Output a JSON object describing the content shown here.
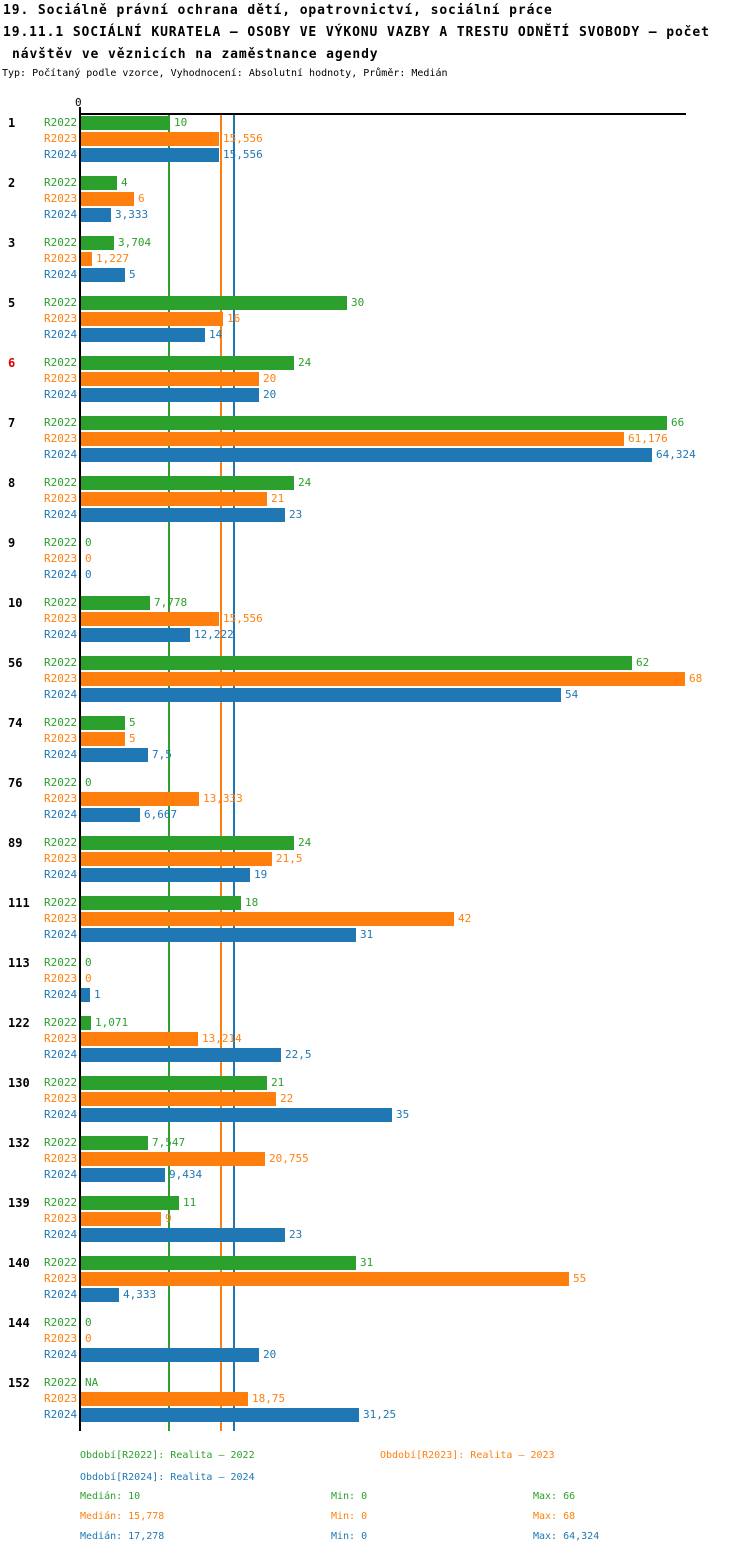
{
  "header": {
    "line1": "19. Sociálně právní ochrana dětí, opatrovnictví, sociální práce",
    "line2": "19.11.1 SOCIÁLNÍ KURATELA – OSOBY VE VÝKONU VAZBY A TRESTU ODNĚTÍ SVOBODY – počet",
    "line3": "návštěv ve věznicích na zaměstnance agendy",
    "line4": "Typ: Počítaný podle vzorce, Vyhodnocení: Absolutní hodnoty, Průměr: Medián"
  },
  "chart_data": {
    "type": "bar",
    "orientation": "horizontal",
    "axis": {
      "origin_tick_label": "0",
      "xmin": 0,
      "xmax": 68.4,
      "grid": false
    },
    "categories": [
      "1",
      "2",
      "3",
      "5",
      "6",
      "7",
      "8",
      "9",
      "10",
      "56",
      "74",
      "76",
      "89",
      "111",
      "113",
      "122",
      "130",
      "132",
      "139",
      "140",
      "144",
      "152"
    ],
    "highlight_category": "6",
    "highlight_color": "#e00000",
    "category_color": "#000000",
    "series": [
      {
        "name": "R2022",
        "color": "#2ca02c",
        "median": 10,
        "values": [
          10,
          4,
          3.704,
          30,
          24,
          66,
          24,
          0,
          7.778,
          62,
          5,
          0,
          24,
          18,
          0,
          1.071,
          21,
          7.547,
          11,
          31,
          0,
          null
        ],
        "labels": [
          "10",
          "4",
          "3,704",
          "30",
          "24",
          "66",
          "24",
          "0",
          "7,778",
          "62",
          "5",
          "0",
          "24",
          "18",
          "0",
          "1,071",
          "21",
          "7,547",
          "11",
          "31",
          "0",
          "NA"
        ]
      },
      {
        "name": "R2023",
        "color": "#ff7f0e",
        "median": 15.778,
        "values": [
          15.556,
          6,
          1.227,
          16,
          20,
          61.176,
          21,
          0,
          15.556,
          68,
          5,
          13.333,
          21.5,
          42,
          0,
          13.214,
          22,
          20.755,
          9,
          55,
          0,
          18.75
        ],
        "labels": [
          "15,556",
          "6",
          "1,227",
          "16",
          "20",
          "61,176",
          "21",
          "0",
          "15,556",
          "68",
          "5",
          "13,333",
          "21,5",
          "42",
          "0",
          "13,214",
          "22",
          "20,755",
          "9",
          "55",
          "0",
          "18,75"
        ]
      },
      {
        "name": "R2024",
        "color": "#1f77b4",
        "median": 17.278,
        "values": [
          15.556,
          3.333,
          5,
          14,
          20,
          64.324,
          23,
          0,
          12.222,
          54,
          7.5,
          6.667,
          19,
          31,
          1,
          22.5,
          35,
          9.434,
          23,
          4.333,
          20,
          31.25
        ],
        "labels": [
          "15,556",
          "3,333",
          "5",
          "14",
          "20",
          "64,324",
          "23",
          "0",
          "12,222",
          "54",
          "7,5",
          "6,667",
          "19",
          "31",
          "1",
          "22,5",
          "35",
          "9,434",
          "23",
          "4,333",
          "20",
          "31,25"
        ]
      }
    ],
    "legend": [
      {
        "label": "Období[R2022]: Realita – 2022",
        "color": "#2ca02c",
        "row": 0,
        "col": 0
      },
      {
        "label": "Období[R2023]: Realita – 2023",
        "color": "#ff7f0e",
        "row": 0,
        "col": 1
      },
      {
        "label": "Období[R2024]: Realita – 2024",
        "color": "#1f77b4",
        "row": 1,
        "col": 0
      }
    ],
    "stats": [
      {
        "median": "Medián: 10",
        "min": "Min: 0",
        "max": "Max: 66",
        "color": "#2ca02c"
      },
      {
        "median": "Medián: 15,778",
        "min": "Min: 0",
        "max": "Max: 68",
        "color": "#ff7f0e"
      },
      {
        "median": "Medián: 17,278",
        "min": "Min: 0",
        "max": "Max: 64,324",
        "color": "#1f77b4"
      }
    ]
  }
}
